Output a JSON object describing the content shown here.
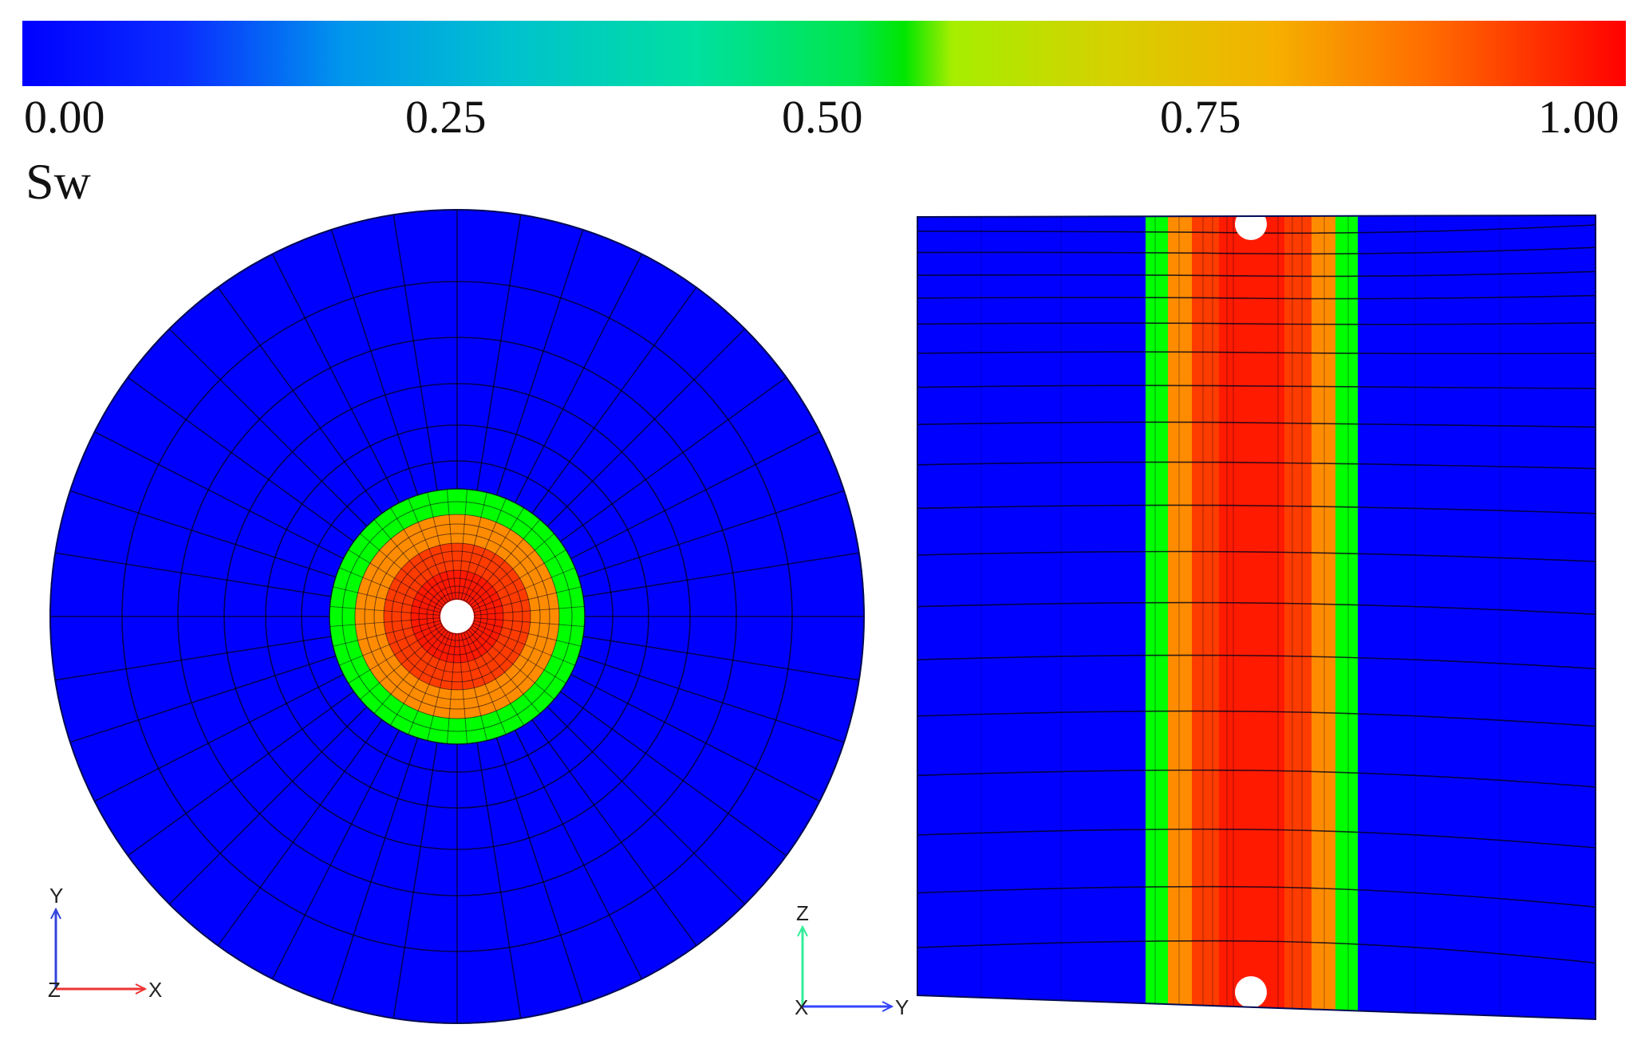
{
  "colorbar": {
    "variable": "Sw",
    "ticks": [
      "0.00",
      "0.25",
      "0.50",
      "0.75",
      "1.00"
    ],
    "stops": [
      {
        "value": 0.0,
        "color": "#0000ff"
      },
      {
        "value": 0.1,
        "color": "#0a2dff"
      },
      {
        "value": 0.2,
        "color": "#0096ec"
      },
      {
        "value": 0.3,
        "color": "#00c0d0"
      },
      {
        "value": 0.42,
        "color": "#00e0a0"
      },
      {
        "value": 0.52,
        "color": "#00e64a"
      },
      {
        "value": 0.55,
        "color": "#00e600"
      },
      {
        "value": 0.58,
        "color": "#a6ee00"
      },
      {
        "value": 0.68,
        "color": "#d6d000"
      },
      {
        "value": 0.78,
        "color": "#f5b000"
      },
      {
        "value": 0.88,
        "color": "#ff6a00"
      },
      {
        "value": 1.0,
        "color": "#ff0000"
      }
    ]
  },
  "field_colors": {
    "background": "#0000ff",
    "band_green": "#00ff00",
    "band_orange": "#ff8c00",
    "band_red_outer": "#ff3c00",
    "band_red_inner": "#ff1a00",
    "mesh_lines": "#00001a"
  },
  "plan_view": {
    "axes": {
      "vertical": "Y",
      "horizontal": "X",
      "out_of_plane": "Z"
    }
  },
  "section_view": {
    "axes": {
      "vertical": "Z",
      "horizontal": "Y",
      "out_of_plane": "X"
    }
  }
}
